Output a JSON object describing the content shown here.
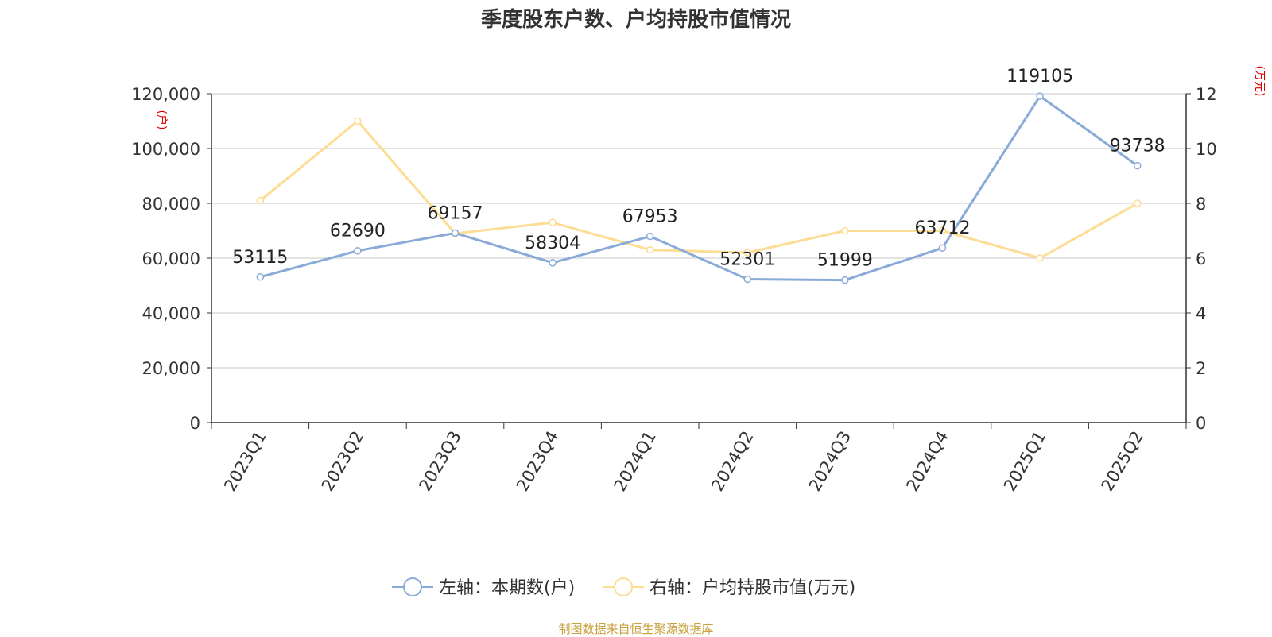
{
  "chart_data": {
    "type": "line",
    "title": "季度股东户数、户均持股市值情况",
    "categories": [
      "2023Q1",
      "2023Q2",
      "2023Q3",
      "2023Q4",
      "2024Q1",
      "2024Q2",
      "2024Q3",
      "2024Q4",
      "2025Q1",
      "2025Q2"
    ],
    "y_left": {
      "unit_label": "(户)",
      "ylim": [
        0,
        120000
      ],
      "ticks": [
        "0",
        "20,000",
        "40,000",
        "60,000",
        "80,000",
        "100,000",
        "120,000"
      ]
    },
    "y_right": {
      "unit_label": "(万元)",
      "ylim": [
        0,
        12
      ],
      "ticks": [
        "0",
        "2",
        "4",
        "6",
        "8",
        "10",
        "12"
      ]
    },
    "series": [
      {
        "name": "左轴：本期数(户)",
        "axis": "left",
        "color": "#8aabd8",
        "values": [
          53115,
          62690,
          69157,
          58304,
          67953,
          52301,
          51999,
          63712,
          119105,
          93738
        ],
        "labels": [
          "53115",
          "62690",
          "69157",
          "58304",
          "67953",
          "52301",
          "51999",
          "63712",
          "119105",
          "93738"
        ]
      },
      {
        "name": "右轴：户均持股市值(万元)",
        "axis": "right",
        "color": "#fddc94",
        "values": [
          8.1,
          11.0,
          6.9,
          7.3,
          6.3,
          6.2,
          7.0,
          7.0,
          6.0,
          8.0
        ]
      }
    ],
    "grid": true,
    "legend_position": "bottom"
  },
  "source_text": "制图数据来自恒生聚源数据库"
}
